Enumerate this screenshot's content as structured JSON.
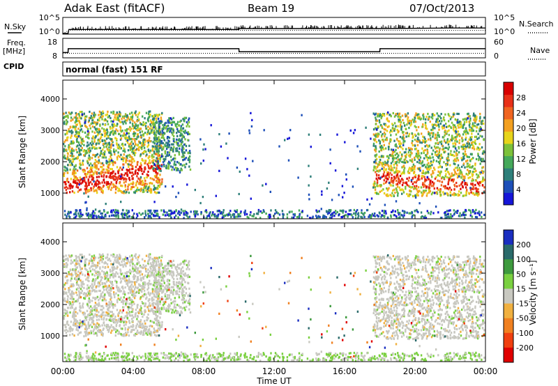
{
  "header": {
    "station": "Adak East (fitACF)",
    "beam": "Beam 19",
    "date": "07/Oct/2013"
  },
  "left_labels": {
    "nsky": "N.Sky",
    "freq1": "Freq.",
    "freq2": "[MHz]",
    "cpid": "CPID"
  },
  "right_labels": {
    "nsearch": "N.Search",
    "nave": "Nave"
  },
  "cpid_text": "normal (fast) 151 RF",
  "chart_data": [
    {
      "type": "line",
      "name": "noise",
      "y_ticks_left": [
        "10^5",
        "10^0"
      ],
      "y_ticks_right": [
        "10^5",
        "10^0"
      ],
      "series": [
        {
          "name": "N.Sky",
          "style": "solid",
          "x": [
            0,
            0.3,
            0.35,
            10,
            10.01,
            18,
            22,
            24
          ],
          "y": [
            1,
            1,
            20,
            20,
            40,
            40,
            60,
            60
          ]
        },
        {
          "name": "N.Search",
          "style": "dotted",
          "x": [
            0,
            0.35,
            24
          ],
          "y": [
            1,
            10,
            10
          ]
        }
      ]
    },
    {
      "type": "line",
      "name": "freq-nave",
      "y_ticks_left": [
        "18",
        "8"
      ],
      "y_ticks_right": [
        "60",
        "0"
      ],
      "series": [
        {
          "name": "Freq.",
          "style": "solid",
          "x": [
            0,
            0.3,
            0.31,
            10,
            10.01,
            18,
            18.01,
            24
          ],
          "y": [
            11,
            11,
            13.5,
            13.5,
            11.5,
            11.5,
            13.5,
            13.5
          ]
        },
        {
          "name": "Nave",
          "style": "dotted",
          "x": [
            0,
            24
          ],
          "y": [
            15,
            15
          ]
        }
      ]
    },
    {
      "type": "heatmap",
      "name": "power",
      "ylabel": "Slant Range [km]",
      "ylim": [
        180,
        4600
      ],
      "yticks": [
        "1000",
        "2000",
        "3000",
        "4000"
      ],
      "colorbar_label": "Power [dB]",
      "colorbar_ticks": [
        "4",
        "8",
        "12",
        "16",
        "20",
        "24",
        "28"
      ],
      "colorbar_colors": [
        "#1515d8",
        "#1d4fb8",
        "#2e7f7a",
        "#45a85a",
        "#7cc13a",
        "#e7d41a",
        "#f3a020",
        "#f06420",
        "#e83018",
        "#d80000"
      ]
    },
    {
      "type": "heatmap",
      "name": "velocity",
      "ylabel": "Slant Range [km]",
      "ylim": [
        180,
        4600
      ],
      "yticks": [
        "1000",
        "2000",
        "3000",
        "4000"
      ],
      "colorbar_label": "Velocity [m s⁻¹]",
      "colorbar_ticks": [
        "200",
        "100",
        "50",
        "15",
        "-15",
        "-50",
        "-100",
        "-200"
      ],
      "colorbar_colors": [
        "#1a2ec0",
        "#2a6a6a",
        "#3e9a3e",
        "#7ad040",
        "#c8c8c0",
        "#f0b040",
        "#f08020",
        "#f04010",
        "#e00000"
      ]
    }
  ],
  "x_axis": {
    "label": "Time UT",
    "ticks": [
      "00:00",
      "04:00",
      "08:00",
      "12:00",
      "16:00",
      "20:00",
      "00:00"
    ],
    "range": [
      0,
      24
    ]
  }
}
